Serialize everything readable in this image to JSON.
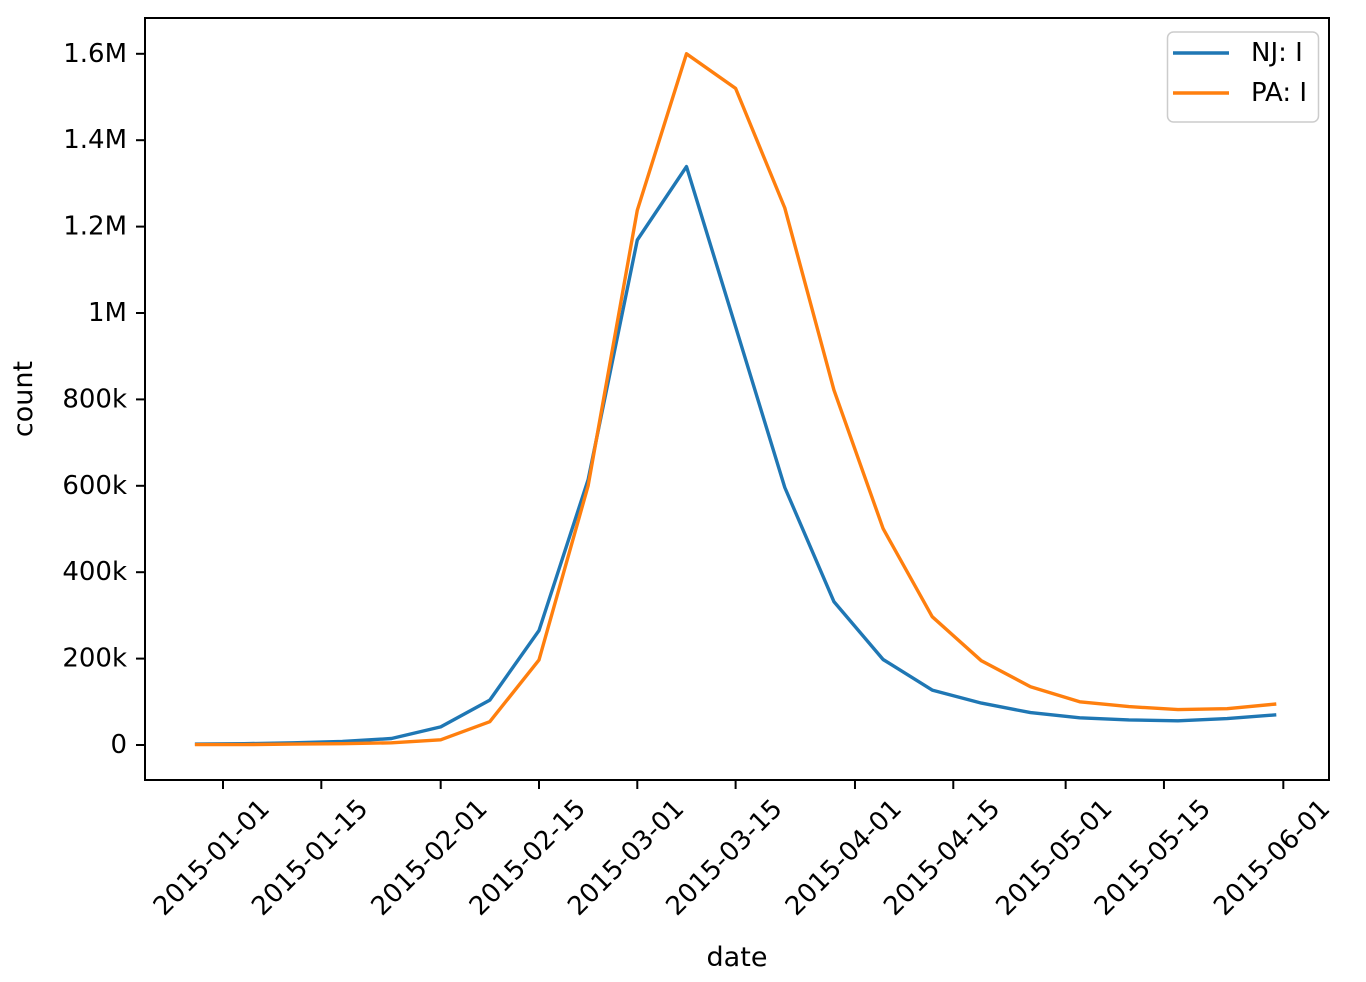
{
  "figure": {
    "background": "#ffffff"
  },
  "chart_data": {
    "type": "line",
    "xlabel": "date",
    "ylabel": "count",
    "grid": false,
    "legend": {
      "position": "upper right",
      "entries": [
        "NJ: I",
        "PA: I"
      ]
    },
    "x_tick_labels": [
      "2015-01-01",
      "2015-01-15",
      "2015-02-01",
      "2015-02-15",
      "2015-03-01",
      "2015-03-15",
      "2015-04-01",
      "2015-04-15",
      "2015-05-01",
      "2015-05-15",
      "2015-06-01"
    ],
    "y_tick_labels": [
      "0",
      "200k",
      "400k",
      "600k",
      "800k",
      "1M",
      "1.2M",
      "1.4M",
      "1.6M"
    ],
    "y_tick_values": [
      0,
      200000,
      400000,
      600000,
      800000,
      1000000,
      1200000,
      1400000,
      1600000
    ],
    "ylim": [
      0,
      1600000
    ],
    "x": [
      "2014-12-28",
      "2015-01-04",
      "2015-01-11",
      "2015-01-18",
      "2015-01-25",
      "2015-02-01",
      "2015-02-08",
      "2015-02-15",
      "2015-02-22",
      "2015-03-01",
      "2015-03-08",
      "2015-03-15",
      "2015-03-22",
      "2015-03-29",
      "2015-04-05",
      "2015-04-12",
      "2015-04-19",
      "2015-04-26",
      "2015-05-03",
      "2015-05-10",
      "2015-05-17",
      "2015-05-24",
      "2015-05-31"
    ],
    "series": [
      {
        "name": "NJ: I",
        "color": "#1f77b4",
        "values": [
          2000,
          3000,
          5000,
          8000,
          15000,
          42000,
          104000,
          265000,
          614000,
          1169000,
          1339000,
          968000,
          596000,
          332000,
          198000,
          127000,
          97000,
          75000,
          63000,
          58000,
          56000,
          61000,
          70000
        ]
      },
      {
        "name": "PA: I",
        "color": "#ff7f0e",
        "values": [
          1000,
          1000,
          2000,
          3000,
          5000,
          12000,
          54000,
          197000,
          600000,
          1238000,
          1600000,
          1520000,
          1243000,
          822000,
          501000,
          297000,
          195000,
          135000,
          100000,
          89000,
          82000,
          84000,
          95000
        ]
      }
    ]
  }
}
